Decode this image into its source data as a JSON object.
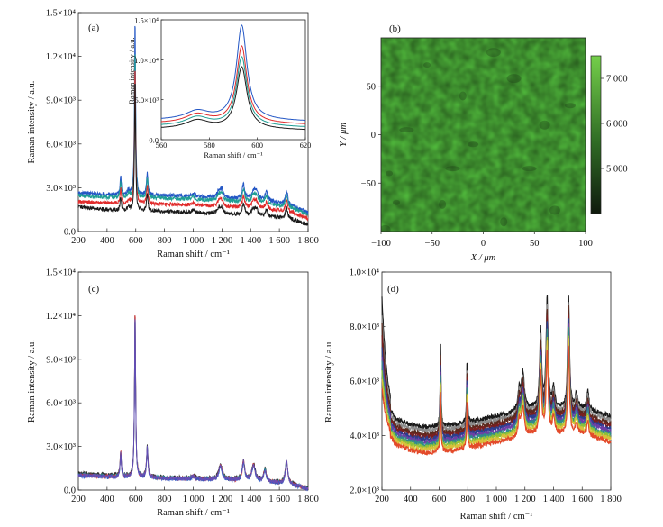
{
  "colors": {
    "black": "#1a1a1a",
    "blue": "#2457c5",
    "red": "#e02b2b",
    "teal": "#1f9e94",
    "purple": "#6a4fb6",
    "map_low": "#0f1a0d",
    "map_high": "#74cf4a",
    "map_base": "#4fb63b"
  },
  "chart_data": [
    {
      "id": "a",
      "type": "line",
      "panel_label": "(a)",
      "xlabel": "Raman shift / cm⁻¹",
      "ylabel": "Raman intensity / a.u.",
      "xlim": [
        200,
        1800
      ],
      "ylim": [
        0,
        15000
      ],
      "x_ticks": [
        "200",
        "400",
        "600",
        "800",
        "1 000",
        "1 200",
        "1 400",
        "1 600",
        "1 800"
      ],
      "y_ticks": [
        "0.0",
        "3.0×10³",
        "6.0×10³",
        "9.0×10³",
        "1.2×10⁴",
        "1.5×10⁴"
      ],
      "peaks": [
        {
          "x": 495,
          "w": 5,
          "h": 1250
        },
        {
          "x": 550,
          "w": 10,
          "h": 300
        },
        {
          "x": 595,
          "w": 4.5,
          "h": 12000
        },
        {
          "x": 680,
          "w": 6,
          "h": 1600
        },
        {
          "x": 1000,
          "w": 12,
          "h": 200
        },
        {
          "x": 1180,
          "w": 14,
          "h": 500
        },
        {
          "x": 1200,
          "w": 12,
          "h": 500
        },
        {
          "x": 1350,
          "w": 10,
          "h": 1000
        },
        {
          "x": 1420,
          "w": 14,
          "h": 600
        },
        {
          "x": 1440,
          "w": 12,
          "h": 500
        },
        {
          "x": 1510,
          "w": 10,
          "h": 600
        },
        {
          "x": 1650,
          "w": 10,
          "h": 1000
        }
      ],
      "series": [
        {
          "color": "blue",
          "baseline": [
            [
              200,
              2650
            ],
            [
              400,
              2550
            ],
            [
              600,
              2500
            ],
            [
              900,
              2450
            ],
            [
              1100,
              2350
            ],
            [
              1300,
              2250
            ],
            [
              1500,
              2150
            ],
            [
              1700,
              1700
            ],
            [
              1800,
              1300
            ]
          ],
          "peak_scale": 1.0
        },
        {
          "color": "teal",
          "baseline": [
            [
              200,
              2450
            ],
            [
              400,
              2350
            ],
            [
              600,
              2300
            ],
            [
              900,
              2250
            ],
            [
              1100,
              2150
            ],
            [
              1300,
              2050
            ],
            [
              1500,
              1950
            ],
            [
              1700,
              1550
            ],
            [
              1800,
              1150
            ]
          ],
          "peak_scale": 0.85
        },
        {
          "color": "red",
          "baseline": [
            [
              200,
              2050
            ],
            [
              400,
              1950
            ],
            [
              600,
              1900
            ],
            [
              900,
              1850
            ],
            [
              1100,
              1750
            ],
            [
              1300,
              1650
            ],
            [
              1500,
              1550
            ],
            [
              1700,
              1250
            ],
            [
              1800,
              900
            ]
          ],
          "peak_scale": 0.8
        },
        {
          "color": "black",
          "baseline": [
            [
              200,
              1700
            ],
            [
              400,
              1500
            ],
            [
              600,
              1400
            ],
            [
              900,
              1350
            ],
            [
              1100,
              1250
            ],
            [
              1300,
              1150
            ],
            [
              1500,
              1050
            ],
            [
              1700,
              800
            ],
            [
              1800,
              450
            ]
          ],
          "peak_scale": 0.75
        }
      ],
      "inset": {
        "xlabel": "Raman shift / cm⁻¹",
        "ylabel": "Raman intensity / a.u.",
        "xlim": [
          560,
          620
        ],
        "ylim": [
          0,
          15000
        ],
        "x_ticks": [
          "560",
          "580",
          "600",
          "620"
        ],
        "y_ticks": [
          "0.0",
          "5.0×10³",
          "1.0×10⁴",
          "1.5×10⁴"
        ]
      }
    },
    {
      "id": "b",
      "type": "heatmap",
      "panel_label": "(b)",
      "xlabel": "X / μm",
      "ylabel": "Y / μm",
      "xlim": [
        -100,
        100
      ],
      "ylim": [
        -100,
        100
      ],
      "x_ticks": [
        "−100",
        "−50",
        "0",
        "50",
        "100"
      ],
      "y_ticks": [
        "−50",
        "0",
        "50"
      ],
      "colorbar": {
        "range": [
          4000,
          7500
        ],
        "ticks": [
          "5 000",
          "6 000",
          "7 000"
        ]
      },
      "dark_spots": [
        [
          -92,
          -40
        ],
        [
          -96,
          -98
        ],
        [
          -75,
          5
        ],
        [
          -40,
          -72
        ],
        [
          -10,
          -10
        ],
        [
          30,
          58
        ],
        [
          -55,
          72
        ],
        [
          70,
          -78
        ],
        [
          45,
          -35
        ],
        [
          -20,
          40
        ],
        [
          85,
          30
        ],
        [
          10,
          85
        ],
        [
          -85,
          -70
        ],
        [
          60,
          10
        ],
        [
          -30,
          -35
        ],
        [
          20,
          -90
        ]
      ]
    },
    {
      "id": "c",
      "type": "line",
      "panel_label": "(c)",
      "xlabel": "Raman shift / cm⁻¹",
      "ylabel": "Raman intensity / a.u.",
      "xlim": [
        200,
        1800
      ],
      "ylim": [
        0,
        15000
      ],
      "x_ticks": [
        "200",
        "400",
        "600",
        "800",
        "1 000",
        "1 200",
        "1 400",
        "1 600",
        "1 800"
      ],
      "y_ticks": [
        "0.0",
        "3.0×10³",
        "6.0×10³",
        "9.0×10³",
        "1.2×10⁴",
        "1.5×10⁴"
      ],
      "peaks": [
        {
          "x": 495,
          "w": 5,
          "h": 1700
        },
        {
          "x": 595,
          "w": 4.5,
          "h": 11600
        },
        {
          "x": 680,
          "w": 6,
          "h": 2100
        },
        {
          "x": 1000,
          "w": 12,
          "h": 200
        },
        {
          "x": 1190,
          "w": 14,
          "h": 1000
        },
        {
          "x": 1350,
          "w": 10,
          "h": 1300
        },
        {
          "x": 1420,
          "w": 14,
          "h": 1100
        },
        {
          "x": 1500,
          "w": 10,
          "h": 800
        },
        {
          "x": 1650,
          "w": 10,
          "h": 1600
        }
      ],
      "series": [
        {
          "color": "black",
          "baseline": [
            [
              200,
              1150
            ],
            [
              400,
              1050
            ],
            [
              600,
              950
            ],
            [
              900,
              850
            ],
            [
              1100,
              800
            ],
            [
              1300,
              750
            ],
            [
              1500,
              650
            ],
            [
              1700,
              400
            ],
            [
              1800,
              100
            ]
          ],
          "peak_scale": 1.0
        },
        {
          "color": "teal",
          "baseline": [
            [
              200,
              1050
            ],
            [
              400,
              950
            ],
            [
              600,
              880
            ],
            [
              900,
              800
            ],
            [
              1100,
              750
            ],
            [
              1300,
              700
            ],
            [
              1500,
              600
            ],
            [
              1700,
              350
            ],
            [
              1800,
              80
            ]
          ],
          "peak_scale": 0.97
        },
        {
          "color": "red",
          "baseline": [
            [
              200,
              1000
            ],
            [
              400,
              920
            ],
            [
              600,
              850
            ],
            [
              900,
              780
            ],
            [
              1100,
              720
            ],
            [
              1300,
              670
            ],
            [
              1500,
              580
            ],
            [
              1700,
              330
            ],
            [
              1800,
              70
            ]
          ],
          "peak_scale": 1.0
        },
        {
          "color": "blue",
          "baseline": [
            [
              200,
              980
            ],
            [
              400,
              900
            ],
            [
              600,
              830
            ],
            [
              900,
              760
            ],
            [
              1100,
              700
            ],
            [
              1300,
              650
            ],
            [
              1500,
              560
            ],
            [
              1700,
              320
            ],
            [
              1800,
              60
            ]
          ],
          "peak_scale": 0.96
        },
        {
          "color": "purple",
          "baseline": [
            [
              200,
              1020
            ],
            [
              400,
              930
            ],
            [
              600,
              860
            ],
            [
              900,
              790
            ],
            [
              1100,
              730
            ],
            [
              1300,
              680
            ],
            [
              1500,
              590
            ],
            [
              1700,
              340
            ],
            [
              1800,
              75
            ]
          ],
          "peak_scale": 0.98
        }
      ]
    },
    {
      "id": "d",
      "type": "line",
      "panel_label": "(d)",
      "xlabel": "Raman shift / cm⁻¹",
      "ylabel": "Raman intensity / a.u.",
      "xlim": [
        200,
        1800
      ],
      "ylim": [
        2000,
        10000
      ],
      "x_ticks": [
        "200",
        "400",
        "600",
        "800",
        "1 000",
        "1 200",
        "1 400",
        "1 600",
        "1 800"
      ],
      "y_ticks": [
        "2.0×10³",
        "4.0×10³",
        "6.0×10³",
        "8.0×10³",
        "1.0×10⁴"
      ],
      "peaks": [
        {
          "x": 610,
          "w": 3.5,
          "h": 2800
        },
        {
          "x": 795,
          "w": 3.5,
          "h": 2200
        },
        {
          "x": 1160,
          "w": 10,
          "h": 700
        },
        {
          "x": 1185,
          "w": 12,
          "h": 1300
        },
        {
          "x": 1310,
          "w": 8,
          "h": 2700
        },
        {
          "x": 1355,
          "w": 8,
          "h": 3800
        },
        {
          "x": 1400,
          "w": 9,
          "h": 700
        },
        {
          "x": 1505,
          "w": 7,
          "h": 4000
        },
        {
          "x": 1560,
          "w": 10,
          "h": 500
        },
        {
          "x": 1640,
          "w": 8,
          "h": 700
        }
      ],
      "series": [
        {
          "color": "#1a1a1a",
          "base_shift": 700,
          "start_bump": 3700,
          "peak_scale": 1.05
        },
        {
          "color": "#8c8c8c",
          "base_shift": 560,
          "start_bump": 3200,
          "peak_scale": 1.0
        },
        {
          "color": "#5a2a1e",
          "base_shift": 440,
          "start_bump": 2900,
          "peak_scale": 1.0
        },
        {
          "color": "#7a1f1f",
          "base_shift": 340,
          "start_bump": 2600,
          "peak_scale": 0.95
        },
        {
          "color": "#2b3f8f",
          "base_shift": 250,
          "start_bump": 2300,
          "peak_scale": 0.95
        },
        {
          "color": "#6c3fa6",
          "base_shift": 160,
          "start_bump": 2100,
          "peak_scale": 0.9
        },
        {
          "color": "#2f8a8a",
          "base_shift": 70,
          "start_bump": 1900,
          "peak_scale": 0.9
        },
        {
          "color": "#8ac03a",
          "base_shift": -30,
          "start_bump": 1700,
          "peak_scale": 0.85
        },
        {
          "color": "#d9c13a",
          "base_shift": -120,
          "start_bump": 1500,
          "peak_scale": 0.85
        },
        {
          "color": "#e34a2a",
          "base_shift": -240,
          "start_bump": 1300,
          "peak_scale": 0.8
        }
      ],
      "baseline": [
        [
          200,
          4700
        ],
        [
          300,
          3900
        ],
        [
          400,
          3700
        ],
        [
          500,
          3600
        ],
        [
          700,
          3700
        ],
        [
          900,
          3900
        ],
        [
          1100,
          4100
        ],
        [
          1250,
          4300
        ],
        [
          1400,
          4300
        ],
        [
          1600,
          4300
        ],
        [
          1800,
          4000
        ]
      ]
    }
  ]
}
